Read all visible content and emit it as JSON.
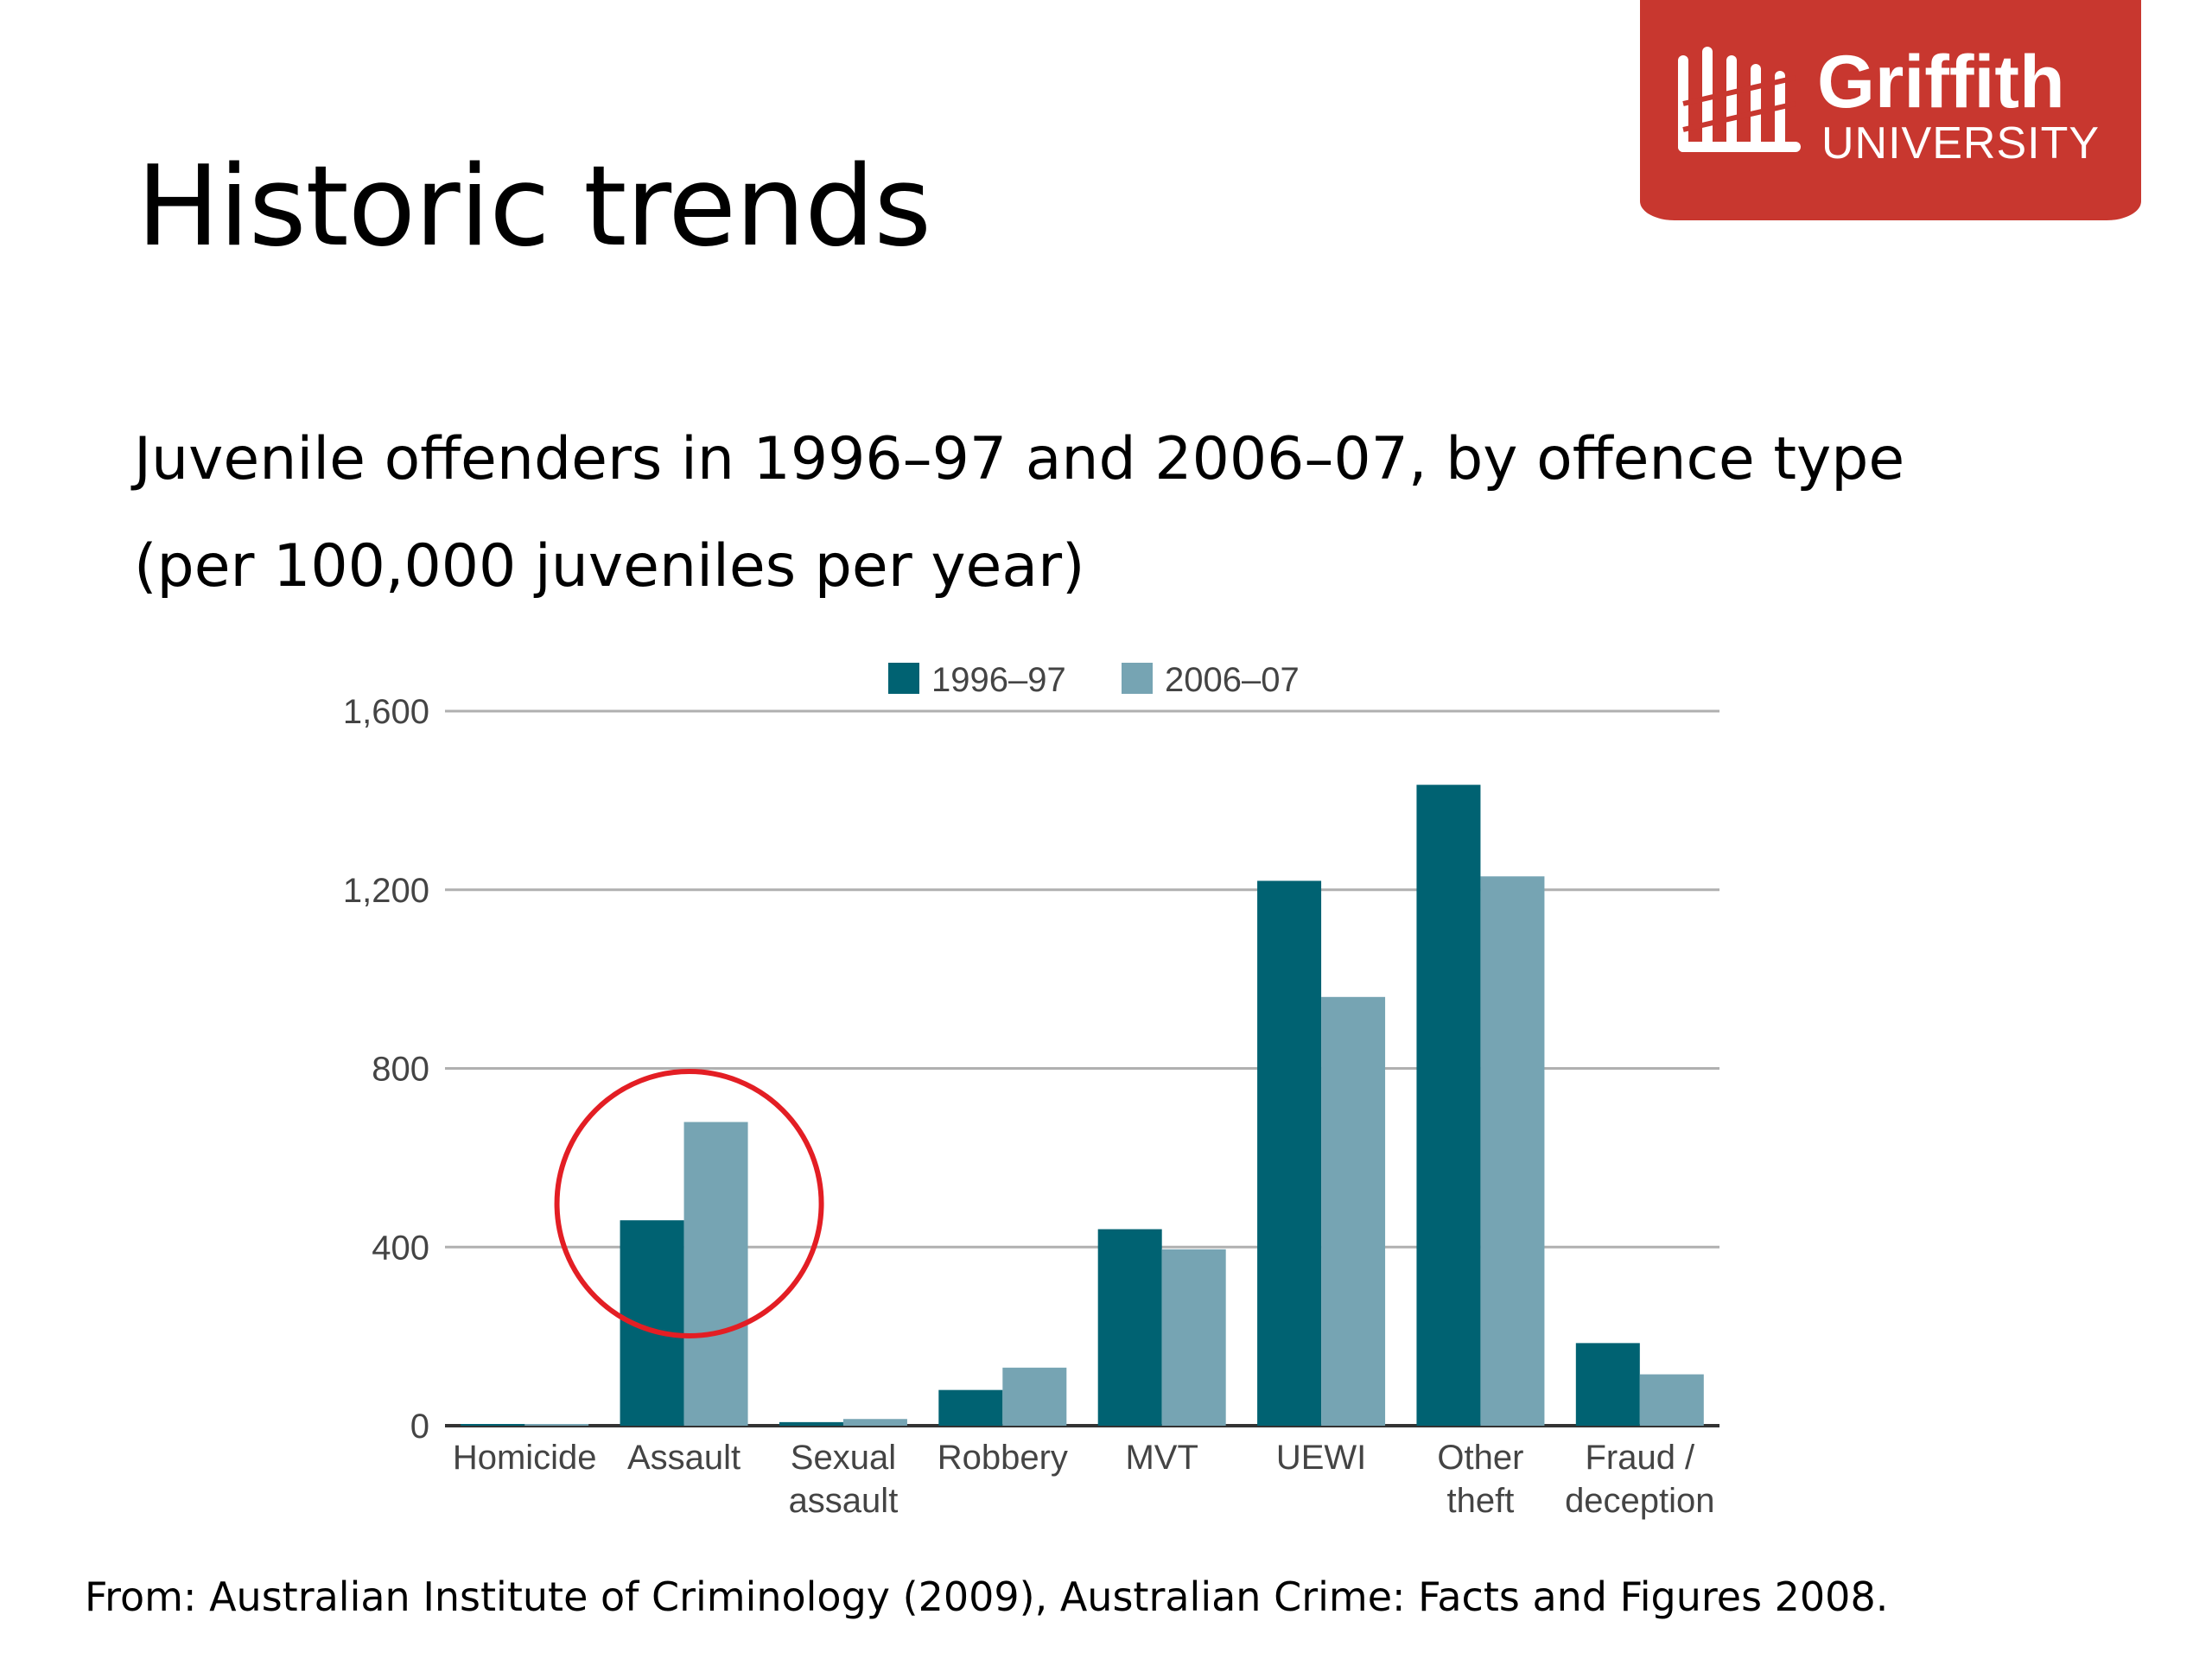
{
  "slide": {
    "title": "Historic trends",
    "subtitle_line1": "Juvenile offenders in 1996–97 and 2006–07, by offence type",
    "subtitle_line2": "(per 100,000 juveniles per year)",
    "source": "From: Australian Institute of Criminology (2009),  Australian Crime: Facts and Figures 2008."
  },
  "logo": {
    "word": "Griffith",
    "sub": "UNIVERSITY",
    "color": "#c8372f"
  },
  "chart_data": {
    "type": "bar",
    "categories": [
      [
        "Homicide"
      ],
      [
        "Assault"
      ],
      [
        "Sexual",
        "assault"
      ],
      [
        "Robbery"
      ],
      [
        "MVT"
      ],
      [
        "UEWI"
      ],
      [
        "Other",
        "theft"
      ],
      [
        "Fraud /",
        "deception"
      ]
    ],
    "series": [
      {
        "name": "1996–97",
        "color": "#006272",
        "values": [
          2,
          460,
          8,
          80,
          440,
          1220,
          1435,
          185
        ]
      },
      {
        "name": "2006–07",
        "color": "#76a4b3",
        "values": [
          1,
          680,
          15,
          130,
          395,
          960,
          1230,
          115
        ]
      }
    ],
    "ylim": [
      0,
      1600
    ],
    "yticks": [
      0,
      400,
      800,
      1200,
      1600
    ],
    "ytick_labels": [
      "0",
      "400",
      "800",
      "1,200",
      "1,600"
    ],
    "grid": true,
    "legend_position": "top-center",
    "highlight": {
      "category_index": 1,
      "shape": "circle",
      "color": "#e31e24"
    }
  }
}
